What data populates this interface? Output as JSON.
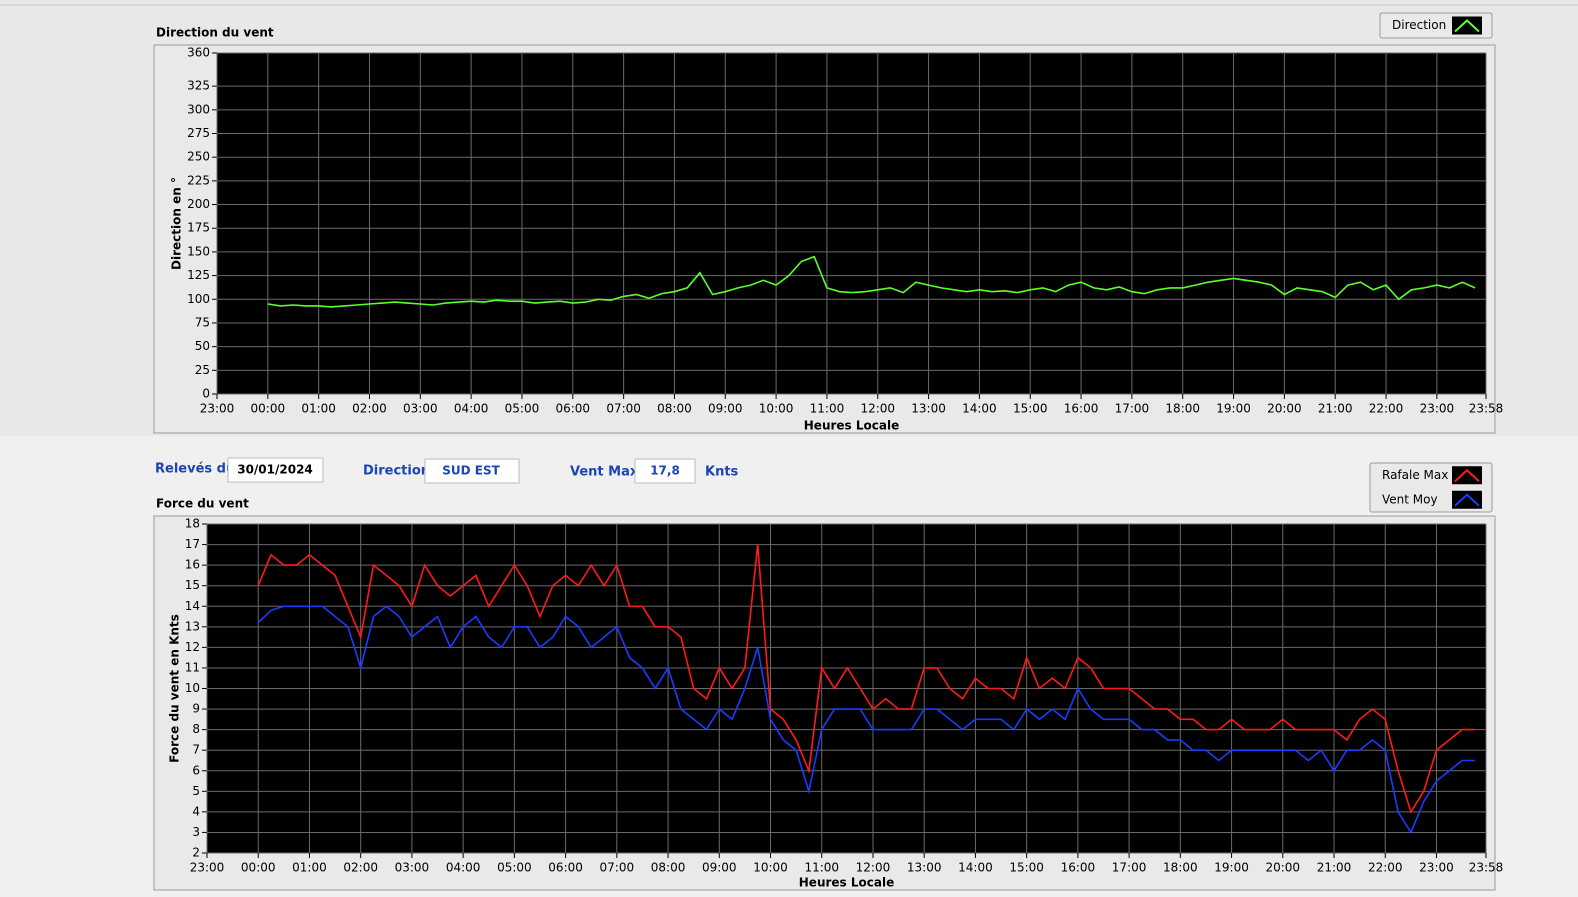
{
  "form": {
    "date_label": "Relevés du",
    "date": "30/01/2024",
    "direction_label": "Direction",
    "direction": "SUD EST",
    "max_label": "Vent Max",
    "max": "17,8",
    "unit": "Knts"
  },
  "chart_data": [
    {
      "type": "line",
      "title": "Direction du vent",
      "x_label": "Heures Locale",
      "y_label": "Direction en °",
      "x": [
        0,
        0.25,
        0.5,
        0.75,
        1,
        1.25,
        1.5,
        1.75,
        2,
        2.25,
        2.5,
        2.75,
        3,
        3.25,
        3.5,
        3.75,
        4,
        4.25,
        4.5,
        4.75,
        5,
        5.25,
        5.5,
        5.75,
        6,
        6.25,
        6.5,
        6.75,
        7,
        7.25,
        7.5,
        7.75,
        8,
        8.25,
        8.5,
        8.75,
        9,
        9.25,
        9.5,
        9.75,
        10,
        10.25,
        10.5,
        10.75,
        11,
        11.25,
        11.5,
        11.75,
        12,
        12.25,
        12.5,
        12.75,
        13,
        13.25,
        13.5,
        13.75,
        14,
        14.25,
        14.5,
        14.75,
        15,
        15.25,
        15.5,
        15.75,
        16,
        16.25,
        16.5,
        16.75,
        17,
        17.25,
        17.5,
        17.75,
        18,
        18.25,
        18.5,
        18.75,
        19,
        19.25,
        19.5,
        19.75,
        20,
        20.25,
        20.5,
        20.75,
        21,
        21.25,
        21.5,
        21.75,
        22,
        22.25,
        22.5,
        22.75,
        23,
        23.25,
        23.5,
        23.75
      ],
      "series": [
        {
          "name": "Direction",
          "color": "#5cff2e",
          "values": [
            95,
            93,
            94,
            93,
            93,
            92,
            93,
            94,
            95,
            96,
            97,
            96,
            95,
            94,
            96,
            97,
            98,
            97,
            99,
            98,
            98,
            96,
            97,
            98,
            96,
            97,
            100,
            99,
            103,
            105,
            101,
            106,
            108,
            112,
            128,
            105,
            108,
            112,
            115,
            120,
            115,
            125,
            140,
            145,
            112,
            108,
            107,
            108,
            110,
            112,
            107,
            118,
            115,
            112,
            110,
            108,
            110,
            108,
            109,
            107,
            110,
            112,
            108,
            115,
            118,
            112,
            110,
            113,
            108,
            106,
            110,
            112,
            112,
            115,
            118,
            120,
            122,
            120,
            118,
            115,
            105,
            112,
            110,
            108,
            102,
            115,
            118,
            110,
            115,
            100,
            110,
            112,
            115,
            112,
            118,
            112
          ]
        }
      ],
      "xlim": [
        -1,
        23.9667
      ],
      "xticks": [
        {
          "value": -1,
          "label": "23:00"
        },
        {
          "value": 0,
          "label": "00:00"
        },
        {
          "value": 1,
          "label": "01:00"
        },
        {
          "value": 2,
          "label": "02:00"
        },
        {
          "value": 3,
          "label": "03:00"
        },
        {
          "value": 4,
          "label": "04:00"
        },
        {
          "value": 5,
          "label": "05:00"
        },
        {
          "value": 6,
          "label": "06:00"
        },
        {
          "value": 7,
          "label": "07:00"
        },
        {
          "value": 8,
          "label": "08:00"
        },
        {
          "value": 9,
          "label": "09:00"
        },
        {
          "value": 10,
          "label": "10:00"
        },
        {
          "value": 11,
          "label": "11:00"
        },
        {
          "value": 12,
          "label": "12:00"
        },
        {
          "value": 13,
          "label": "13:00"
        },
        {
          "value": 14,
          "label": "14:00"
        },
        {
          "value": 15,
          "label": "15:00"
        },
        {
          "value": 16,
          "label": "16:00"
        },
        {
          "value": 17,
          "label": "17:00"
        },
        {
          "value": 18,
          "label": "18:00"
        },
        {
          "value": 19,
          "label": "19:00"
        },
        {
          "value": 20,
          "label": "20:00"
        },
        {
          "value": 21,
          "label": "21:00"
        },
        {
          "value": 22,
          "label": "22:00"
        },
        {
          "value": 23,
          "label": "23:00"
        },
        {
          "value": 23.9667,
          "label": "23:58"
        }
      ],
      "ylim": [
        0,
        360
      ],
      "yticks": [
        0,
        25,
        50,
        75,
        100,
        125,
        150,
        175,
        200,
        225,
        250,
        275,
        300,
        325,
        360
      ],
      "grid": true
    },
    {
      "type": "line",
      "title": "Force du vent",
      "x_label": "Heures Locale",
      "y_label": "Force du vent en Knts",
      "x": [
        0,
        0.25,
        0.5,
        0.75,
        1,
        1.25,
        1.5,
        1.75,
        2,
        2.25,
        2.5,
        2.75,
        3,
        3.25,
        3.5,
        3.75,
        4,
        4.25,
        4.5,
        4.75,
        5,
        5.25,
        5.5,
        5.75,
        6,
        6.25,
        6.5,
        6.75,
        7,
        7.25,
        7.5,
        7.75,
        8,
        8.25,
        8.5,
        8.75,
        9,
        9.25,
        9.5,
        9.75,
        10,
        10.25,
        10.5,
        10.75,
        11,
        11.25,
        11.5,
        11.75,
        12,
        12.25,
        12.5,
        12.75,
        13,
        13.25,
        13.5,
        13.75,
        14,
        14.25,
        14.5,
        14.75,
        15,
        15.25,
        15.5,
        15.75,
        16,
        16.25,
        16.5,
        16.75,
        17,
        17.25,
        17.5,
        17.75,
        18,
        18.25,
        18.5,
        18.75,
        19,
        19.25,
        19.5,
        19.75,
        20,
        20.25,
        20.5,
        20.75,
        21,
        21.25,
        21.5,
        21.75,
        22,
        22.25,
        22.5,
        22.75,
        23,
        23.25,
        23.5,
        23.75
      ],
      "series": [
        {
          "name": "Rafale Max",
          "color": "#ff1a1a",
          "values": [
            15,
            16.5,
            16,
            16,
            16.5,
            16,
            15.5,
            14,
            12.5,
            16,
            15.5,
            15,
            14,
            16,
            15,
            14.5,
            15,
            15.5,
            14,
            15,
            16,
            15,
            13.5,
            15,
            15.5,
            15,
            16,
            15,
            16,
            14,
            14,
            13,
            13,
            12.5,
            10,
            9.5,
            11,
            10,
            11,
            17,
            9,
            8.5,
            7.5,
            6,
            11,
            10,
            11,
            10,
            9,
            9.5,
            9,
            9,
            11,
            11,
            10,
            9.5,
            10.5,
            10,
            10,
            9.5,
            11.5,
            10,
            10.5,
            10,
            11.5,
            11,
            10,
            10,
            10,
            9.5,
            9,
            9,
            8.5,
            8.5,
            8,
            8,
            8.5,
            8,
            8,
            8,
            8.5,
            8,
            8,
            8,
            8,
            7.5,
            8.5,
            9,
            8.5,
            6,
            4,
            5,
            7,
            7.5,
            8,
            8
          ]
        },
        {
          "name": "Vent Moy",
          "color": "#1a3cff",
          "values": [
            13.2,
            13.8,
            14,
            14,
            14,
            14,
            13.5,
            13,
            11,
            13.5,
            14,
            13.5,
            12.5,
            13,
            13.5,
            12,
            13,
            13.5,
            12.5,
            12,
            13,
            13,
            12,
            12.5,
            13.5,
            13,
            12,
            12.5,
            13,
            11.5,
            11,
            10,
            11,
            9,
            8.5,
            8,
            9,
            8.5,
            10,
            12,
            8.5,
            7.5,
            7,
            5,
            8,
            9,
            9,
            9,
            8,
            8,
            8,
            8,
            9,
            9,
            8.5,
            8,
            8.5,
            8.5,
            8.5,
            8,
            9,
            8.5,
            9,
            8.5,
            10,
            9,
            8.5,
            8.5,
            8.5,
            8,
            8,
            7.5,
            7.5,
            7,
            7,
            6.5,
            7,
            7,
            7,
            7,
            7,
            7,
            6.5,
            7,
            6,
            7,
            7,
            7.5,
            7,
            4,
            3,
            4.5,
            5.5,
            6,
            6.5,
            6.5
          ]
        }
      ],
      "xlim": [
        -1,
        23.9667
      ],
      "xticks": [
        {
          "value": -1,
          "label": "23:00"
        },
        {
          "value": 0,
          "label": "00:00"
        },
        {
          "value": 1,
          "label": "01:00"
        },
        {
          "value": 2,
          "label": "02:00"
        },
        {
          "value": 3,
          "label": "03:00"
        },
        {
          "value": 4,
          "label": "04:00"
        },
        {
          "value": 5,
          "label": "05:00"
        },
        {
          "value": 6,
          "label": "06:00"
        },
        {
          "value": 7,
          "label": "07:00"
        },
        {
          "value": 8,
          "label": "08:00"
        },
        {
          "value": 9,
          "label": "09:00"
        },
        {
          "value": 10,
          "label": "10:00"
        },
        {
          "value": 11,
          "label": "11:00"
        },
        {
          "value": 12,
          "label": "12:00"
        },
        {
          "value": 13,
          "label": "13:00"
        },
        {
          "value": 14,
          "label": "14:00"
        },
        {
          "value": 15,
          "label": "15:00"
        },
        {
          "value": 16,
          "label": "16:00"
        },
        {
          "value": 17,
          "label": "17:00"
        },
        {
          "value": 18,
          "label": "18:00"
        },
        {
          "value": 19,
          "label": "19:00"
        },
        {
          "value": 20,
          "label": "20:00"
        },
        {
          "value": 21,
          "label": "21:00"
        },
        {
          "value": 22,
          "label": "22:00"
        },
        {
          "value": 23,
          "label": "23:00"
        },
        {
          "value": 23.9667,
          "label": "23:58"
        }
      ],
      "ylim": [
        2,
        18
      ],
      "yticks": [
        2,
        3,
        4,
        5,
        6,
        7,
        8,
        9,
        10,
        11,
        12,
        13,
        14,
        15,
        16,
        17,
        18
      ],
      "grid": true
    }
  ]
}
